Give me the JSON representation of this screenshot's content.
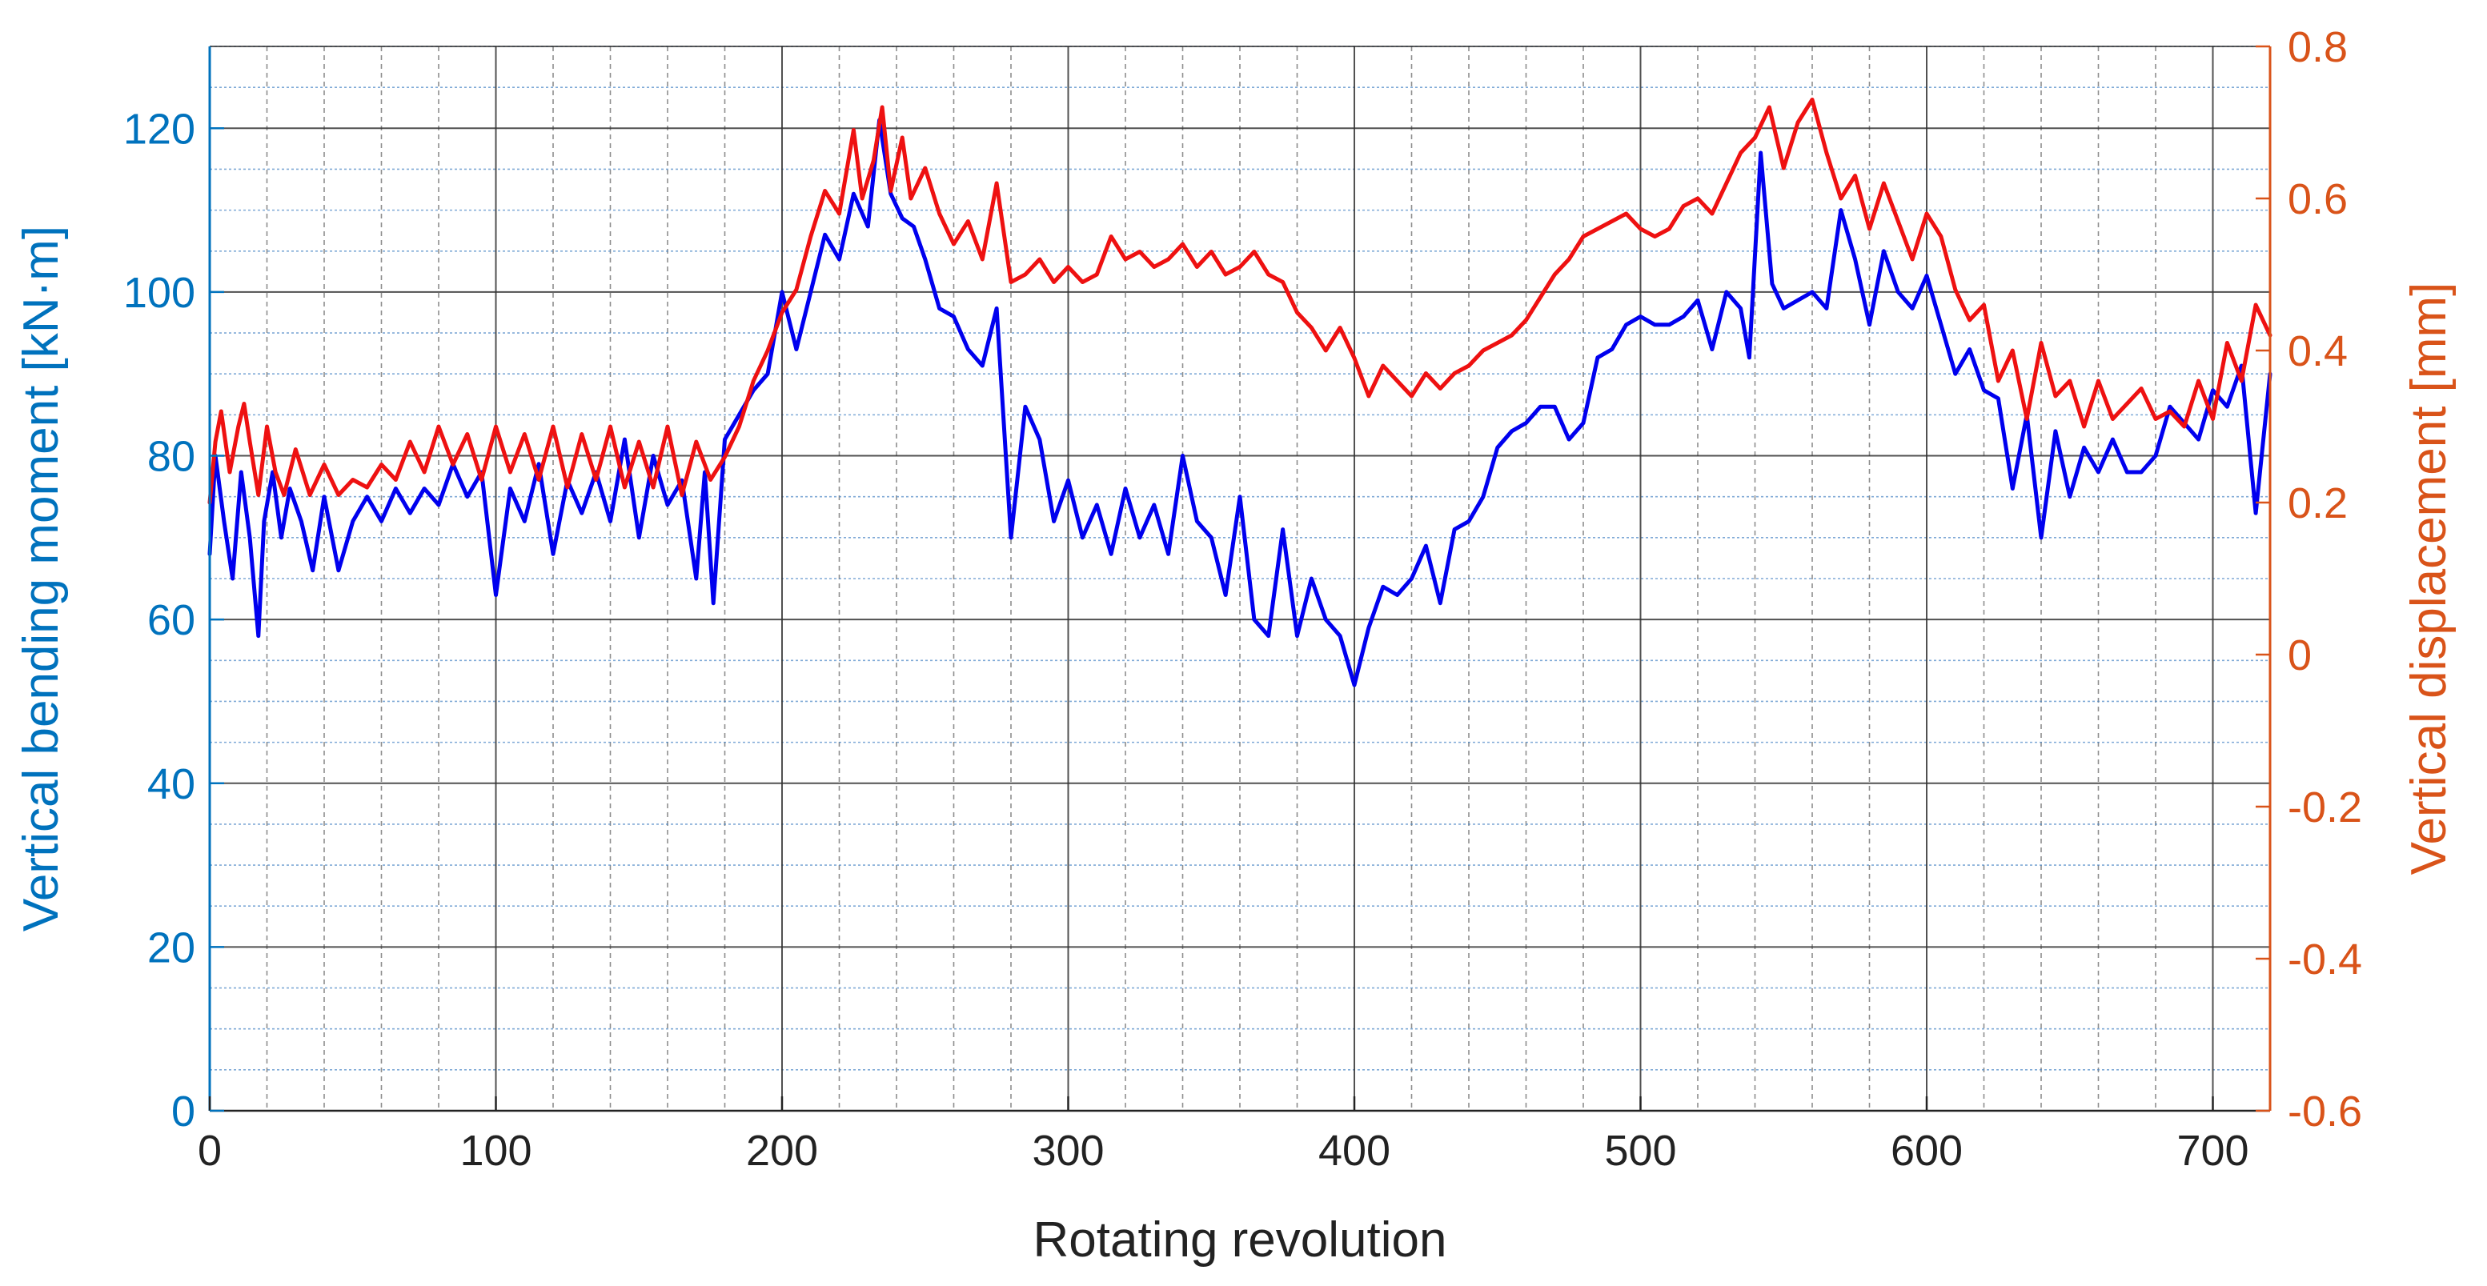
{
  "chart_data": {
    "type": "line",
    "title": "",
    "xlabel": "Rotating revolution",
    "ylabel_left": "Vertical bending moment [kN·m]",
    "ylabel_right": "Vertical displacement [mm]",
    "xlim": [
      0,
      720
    ],
    "ylim_left": [
      0,
      130
    ],
    "ylim_right": [
      -0.6,
      0.8
    ],
    "x_ticks": [
      0,
      100,
      200,
      300,
      400,
      500,
      600,
      700
    ],
    "y_ticks_left": [
      0,
      20,
      40,
      60,
      80,
      100,
      120
    ],
    "y_ticks_right": [
      -0.6,
      -0.4,
      -0.2,
      0,
      0.2,
      0.4,
      0.6,
      0.8
    ],
    "y_tick_labels_right": [
      "-0.6",
      "-0.4",
      "-0.2",
      "0",
      "0.2",
      "0.4",
      "0.6",
      "0.8"
    ],
    "grid": true,
    "colors": {
      "left_axis": "#0072BD",
      "right_axis": "#D95319",
      "bending_line": "#0000EE",
      "displacement_line": "#EE1111",
      "major_grid": "#333333",
      "minor_grid": "#4a86c5"
    },
    "series": [
      {
        "axis": "left",
        "color": "#0000EE",
        "x": [
          0,
          2,
          5,
          8,
          11,
          14,
          17,
          19,
          22,
          25,
          28,
          32,
          36,
          40,
          45,
          50,
          55,
          60,
          65,
          70,
          75,
          80,
          85,
          90,
          95,
          100,
          105,
          110,
          115,
          120,
          125,
          130,
          135,
          140,
          145,
          150,
          155,
          160,
          165,
          170,
          173,
          176,
          180,
          185,
          190,
          195,
          200,
          205,
          210,
          215,
          220,
          225,
          230,
          234,
          238,
          242,
          246,
          250,
          255,
          260,
          265,
          270,
          275,
          280,
          285,
          290,
          295,
          300,
          305,
          310,
          315,
          320,
          325,
          330,
          335,
          340,
          345,
          350,
          355,
          360,
          365,
          370,
          375,
          380,
          385,
          390,
          395,
          400,
          405,
          410,
          415,
          420,
          425,
          430,
          435,
          440,
          445,
          450,
          455,
          460,
          465,
          470,
          475,
          480,
          485,
          490,
          495,
          500,
          505,
          510,
          515,
          520,
          525,
          530,
          535,
          538,
          542,
          546,
          550,
          555,
          560,
          565,
          570,
          575,
          580,
          585,
          590,
          595,
          600,
          605,
          610,
          615,
          620,
          625,
          630,
          635,
          640,
          645,
          650,
          655,
          660,
          665,
          670,
          675,
          680,
          685,
          690,
          695,
          700,
          705,
          710,
          715,
          720
        ],
        "y": [
          68,
          80,
          72,
          65,
          78,
          70,
          58,
          72,
          78,
          70,
          76,
          72,
          66,
          75,
          66,
          72,
          75,
          72,
          76,
          73,
          76,
          74,
          79,
          75,
          78,
          63,
          76,
          72,
          79,
          68,
          77,
          73,
          78,
          72,
          82,
          70,
          80,
          74,
          77,
          65,
          78,
          62,
          82,
          85,
          88,
          90,
          100,
          93,
          100,
          107,
          104,
          112,
          108,
          121,
          112,
          109,
          108,
          104,
          98,
          97,
          93,
          91,
          98,
          70,
          86,
          82,
          72,
          77,
          70,
          74,
          68,
          76,
          70,
          74,
          68,
          80,
          72,
          70,
          63,
          75,
          60,
          58,
          71,
          58,
          65,
          60,
          58,
          52,
          59,
          64,
          63,
          65,
          69,
          62,
          71,
          72,
          75,
          81,
          83,
          84,
          86,
          86,
          82,
          84,
          92,
          93,
          96,
          97,
          96,
          96,
          97,
          99,
          93,
          100,
          98,
          92,
          117,
          101,
          98,
          99,
          100,
          98,
          110,
          104,
          96,
          105,
          100,
          98,
          102,
          96,
          90,
          93,
          88,
          87,
          76,
          85,
          70,
          83,
          75,
          81,
          78,
          82,
          78,
          78,
          80,
          86,
          84,
          82,
          88,
          86,
          91,
          73,
          90
        ]
      },
      {
        "axis": "right",
        "color": "#EE1111",
        "x": [
          0,
          2,
          4,
          7,
          10,
          12,
          14,
          17,
          20,
          23,
          26,
          30,
          35,
          40,
          45,
          50,
          55,
          60,
          65,
          70,
          75,
          80,
          85,
          90,
          95,
          100,
          105,
          110,
          115,
          120,
          125,
          130,
          135,
          140,
          145,
          150,
          155,
          160,
          165,
          170,
          175,
          180,
          185,
          190,
          195,
          200,
          205,
          210,
          215,
          220,
          225,
          228,
          232,
          235,
          238,
          242,
          245,
          250,
          255,
          260,
          265,
          270,
          275,
          280,
          285,
          290,
          295,
          300,
          305,
          310,
          315,
          320,
          325,
          330,
          335,
          340,
          345,
          350,
          355,
          360,
          365,
          370,
          375,
          380,
          385,
          390,
          395,
          400,
          405,
          410,
          415,
          420,
          425,
          430,
          435,
          440,
          445,
          450,
          455,
          460,
          465,
          470,
          475,
          480,
          485,
          490,
          495,
          500,
          505,
          510,
          515,
          520,
          525,
          530,
          535,
          540,
          545,
          550,
          555,
          560,
          565,
          570,
          575,
          580,
          585,
          590,
          595,
          600,
          605,
          610,
          615,
          620,
          625,
          630,
          635,
          640,
          645,
          650,
          655,
          660,
          665,
          670,
          675,
          680,
          685,
          690,
          695,
          700,
          705,
          710,
          715,
          720
        ],
        "y": [
          0.2,
          0.28,
          0.32,
          0.24,
          0.3,
          0.33,
          0.28,
          0.21,
          0.3,
          0.24,
          0.21,
          0.27,
          0.21,
          0.25,
          0.21,
          0.23,
          0.22,
          0.25,
          0.23,
          0.28,
          0.24,
          0.3,
          0.25,
          0.29,
          0.23,
          0.3,
          0.24,
          0.29,
          0.23,
          0.3,
          0.22,
          0.29,
          0.23,
          0.3,
          0.22,
          0.28,
          0.22,
          0.3,
          0.21,
          0.28,
          0.23,
          0.26,
          0.3,
          0.36,
          0.4,
          0.45,
          0.48,
          0.55,
          0.61,
          0.58,
          0.69,
          0.6,
          0.65,
          0.72,
          0.61,
          0.68,
          0.6,
          0.64,
          0.58,
          0.54,
          0.57,
          0.52,
          0.62,
          0.49,
          0.5,
          0.52,
          0.49,
          0.51,
          0.49,
          0.5,
          0.55,
          0.52,
          0.53,
          0.51,
          0.52,
          0.54,
          0.51,
          0.53,
          0.5,
          0.51,
          0.53,
          0.5,
          0.49,
          0.45,
          0.43,
          0.4,
          0.43,
          0.39,
          0.34,
          0.38,
          0.36,
          0.34,
          0.37,
          0.35,
          0.37,
          0.38,
          0.4,
          0.41,
          0.42,
          0.44,
          0.47,
          0.5,
          0.52,
          0.55,
          0.56,
          0.57,
          0.58,
          0.56,
          0.55,
          0.56,
          0.59,
          0.6,
          0.58,
          0.62,
          0.66,
          0.68,
          0.72,
          0.64,
          0.7,
          0.73,
          0.66,
          0.6,
          0.63,
          0.56,
          0.62,
          0.57,
          0.52,
          0.58,
          0.55,
          0.48,
          0.44,
          0.46,
          0.36,
          0.4,
          0.31,
          0.41,
          0.34,
          0.36,
          0.3,
          0.36,
          0.31,
          0.33,
          0.35,
          0.31,
          0.32,
          0.3,
          0.36,
          0.31,
          0.41,
          0.36,
          0.46,
          0.42
        ]
      }
    ]
  }
}
